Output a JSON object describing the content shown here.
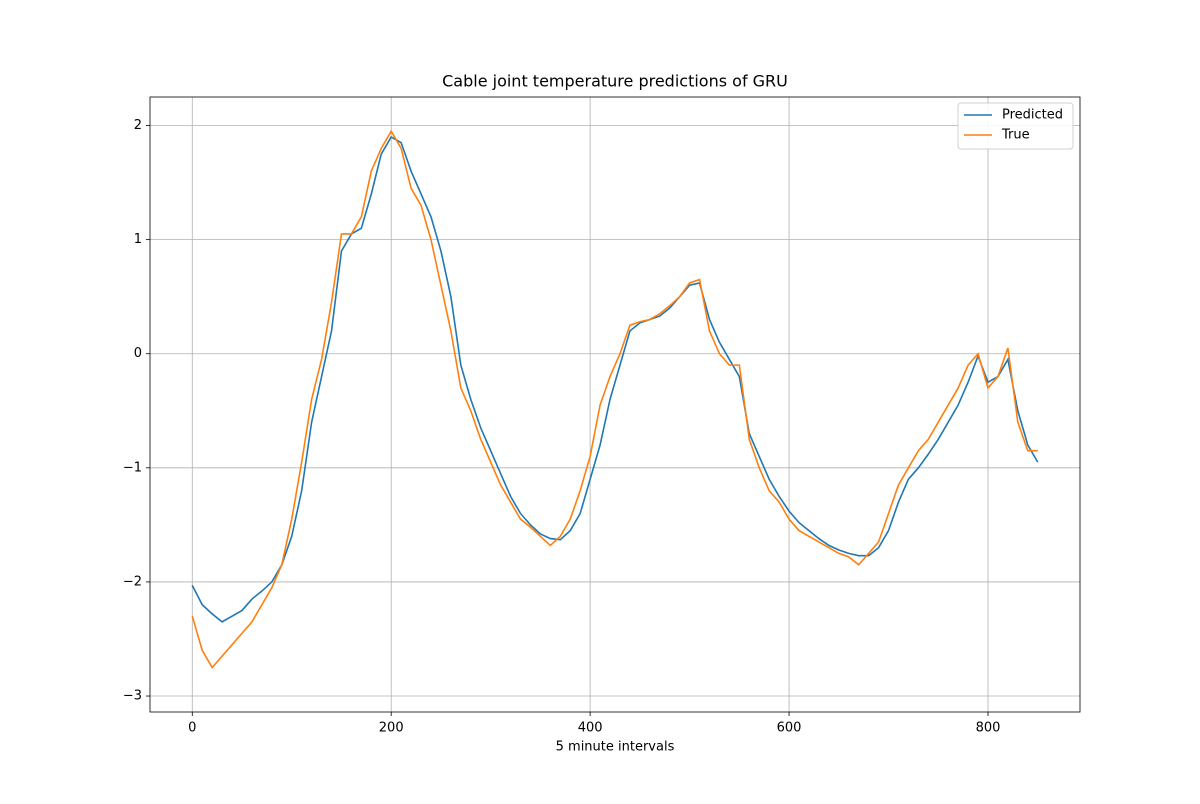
{
  "chart_data": {
    "type": "line",
    "title": "Cable joint temperature predictions of GRU",
    "x_label": "5 minute intervals",
    "x": [
      0,
      10,
      20,
      30,
      40,
      50,
      60,
      70,
      80,
      90,
      100,
      110,
      120,
      130,
      140,
      150,
      160,
      170,
      180,
      190,
      200,
      210,
      220,
      230,
      240,
      250,
      260,
      270,
      280,
      290,
      300,
      310,
      320,
      330,
      340,
      350,
      360,
      370,
      380,
      390,
      400,
      410,
      420,
      430,
      440,
      450,
      460,
      470,
      480,
      490,
      500,
      510,
      520,
      530,
      540,
      550,
      560,
      570,
      580,
      590,
      600,
      610,
      620,
      630,
      640,
      650,
      660,
      670,
      680,
      690,
      700,
      710,
      720,
      730,
      740,
      750,
      760,
      770,
      780,
      790,
      800,
      810,
      820,
      830,
      840,
      850
    ],
    "series": [
      {
        "name": "Predicted",
        "color": "#1f77b4",
        "values": [
          -2.03,
          -2.2,
          -2.28,
          -2.35,
          -2.3,
          -2.25,
          -2.15,
          -2.08,
          -2.0,
          -1.85,
          -1.6,
          -1.2,
          -0.6,
          -0.2,
          0.2,
          0.9,
          1.05,
          1.1,
          1.4,
          1.75,
          1.9,
          1.85,
          1.6,
          1.4,
          1.2,
          0.9,
          0.5,
          -0.1,
          -0.4,
          -0.65,
          -0.85,
          -1.05,
          -1.25,
          -1.4,
          -1.5,
          -1.58,
          -1.62,
          -1.63,
          -1.55,
          -1.4,
          -1.1,
          -0.8,
          -0.4,
          -0.1,
          0.2,
          0.27,
          0.3,
          0.33,
          0.4,
          0.5,
          0.6,
          0.62,
          0.3,
          0.1,
          -0.05,
          -0.2,
          -0.7,
          -0.9,
          -1.1,
          -1.25,
          -1.38,
          -1.48,
          -1.55,
          -1.62,
          -1.68,
          -1.72,
          -1.75,
          -1.77,
          -1.77,
          -1.7,
          -1.55,
          -1.3,
          -1.1,
          -1.0,
          -0.88,
          -0.75,
          -0.6,
          -0.45,
          -0.25,
          -0.02,
          -0.25,
          -0.2,
          -0.05,
          -0.5,
          -0.8,
          -0.95
        ]
      },
      {
        "name": "True",
        "color": "#ff7f0e",
        "values": [
          -2.3,
          -2.6,
          -2.75,
          -2.65,
          -2.55,
          -2.45,
          -2.35,
          -2.2,
          -2.05,
          -1.85,
          -1.45,
          -0.95,
          -0.4,
          -0.05,
          0.45,
          1.05,
          1.05,
          1.2,
          1.6,
          1.8,
          1.95,
          1.8,
          1.45,
          1.3,
          1.0,
          0.6,
          0.2,
          -0.3,
          -0.5,
          -0.75,
          -0.95,
          -1.15,
          -1.3,
          -1.45,
          -1.52,
          -1.6,
          -1.68,
          -1.6,
          -1.45,
          -1.2,
          -0.9,
          -0.45,
          -0.2,
          0.0,
          0.25,
          0.28,
          0.3,
          0.35,
          0.42,
          0.5,
          0.62,
          0.65,
          0.2,
          0.0,
          -0.1,
          -0.1,
          -0.75,
          -1.0,
          -1.2,
          -1.3,
          -1.45,
          -1.55,
          -1.6,
          -1.65,
          -1.7,
          -1.75,
          -1.78,
          -1.85,
          -1.75,
          -1.65,
          -1.4,
          -1.15,
          -1.0,
          -0.85,
          -0.75,
          -0.6,
          -0.45,
          -0.3,
          -0.1,
          0.0,
          -0.3,
          -0.2,
          0.05,
          -0.6,
          -0.85,
          -0.85
        ]
      }
    ],
    "xlim": [
      -42.5,
      892.5
    ],
    "ylim": [
      -3.14,
      2.25
    ],
    "xticks": [
      0,
      200,
      400,
      600,
      800
    ],
    "yticks": [
      {
        "value": -3,
        "label": "−3"
      },
      {
        "value": -2,
        "label": "−2"
      },
      {
        "value": -1,
        "label": "−1"
      },
      0,
      1,
      2
    ],
    "grid": true,
    "legend": "upper right"
  }
}
